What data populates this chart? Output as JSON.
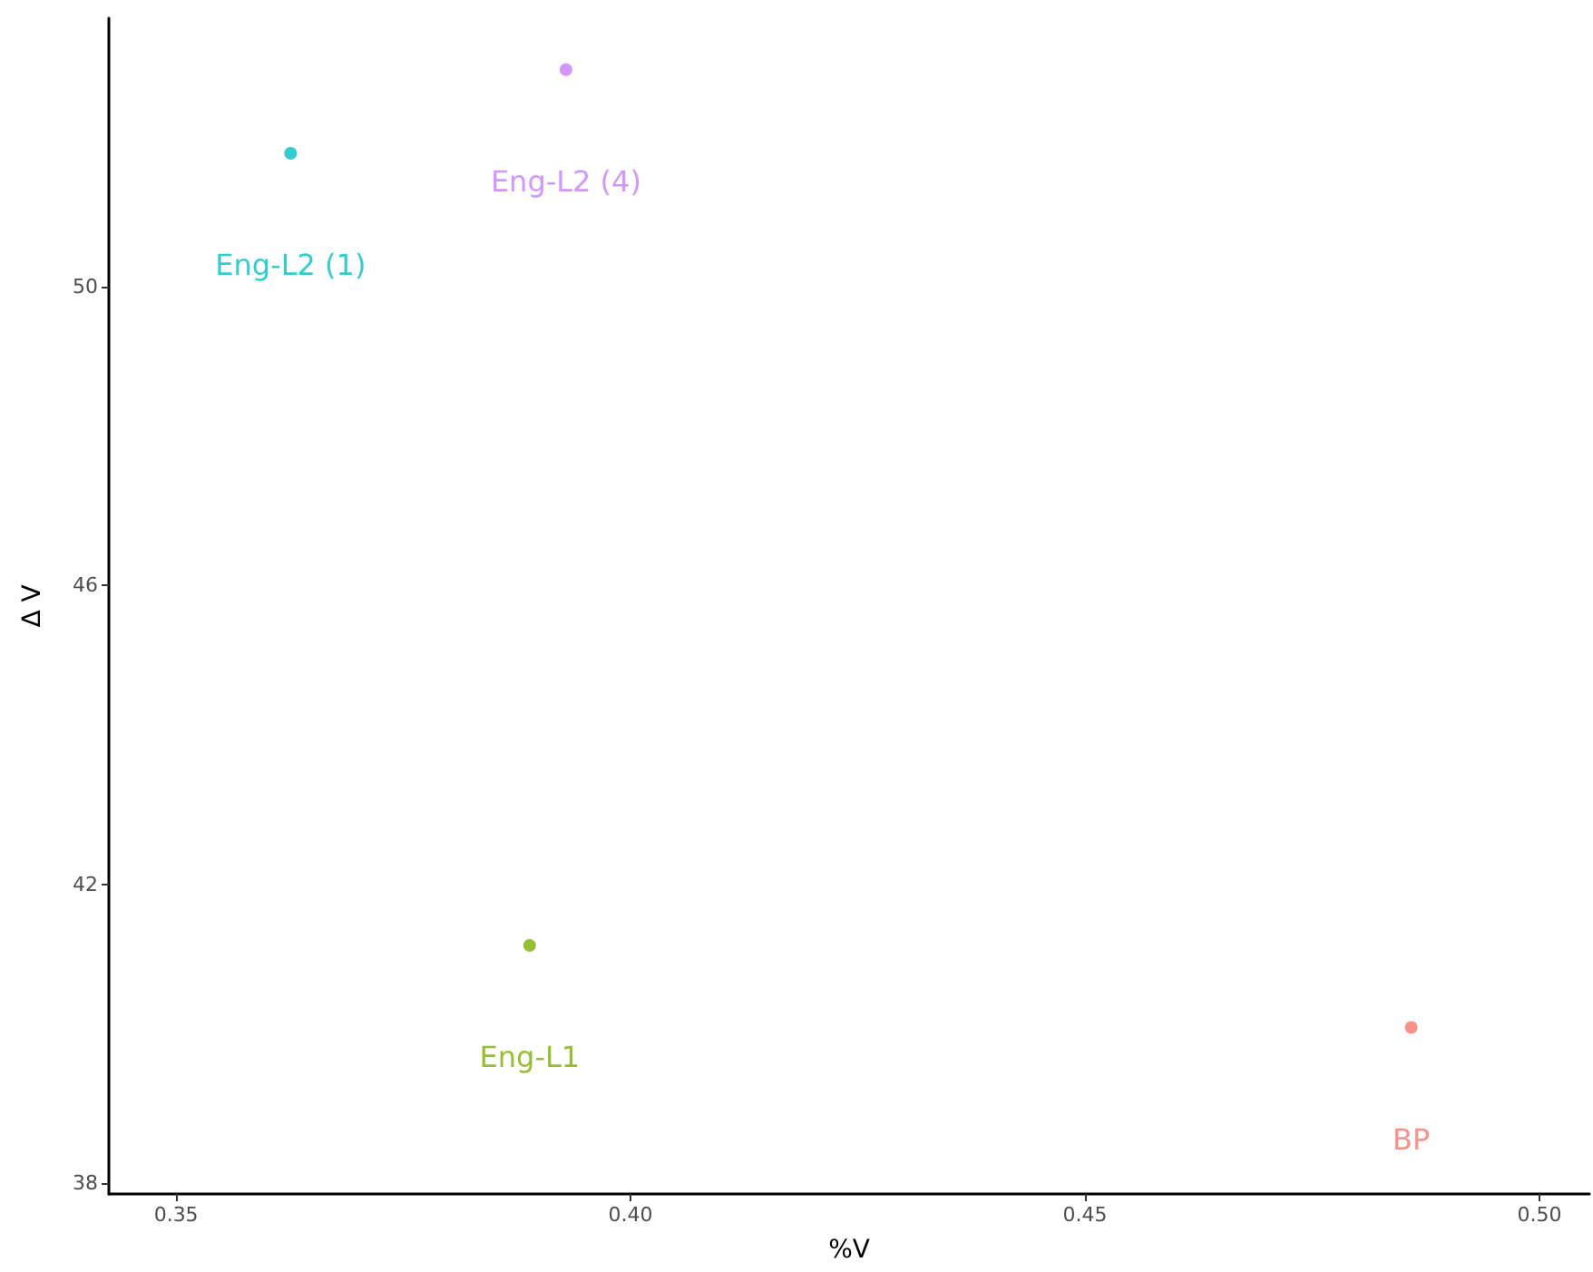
{
  "chart_data": {
    "type": "scatter",
    "xlabel": "%V",
    "ylabel": "Δ V",
    "marker": "circle",
    "grid": false,
    "legend": false,
    "xlim": [
      0.3426,
      0.5055
    ],
    "xticks": [
      {
        "value": 0.35,
        "label": "0.35"
      },
      {
        "value": 0.4,
        "label": "0.40"
      },
      {
        "value": 0.45,
        "label": "0.45"
      },
      {
        "value": 0.5,
        "label": "0.50"
      }
    ],
    "ylim": [
      37.85,
      53.6
    ],
    "yticks": [
      38,
      42,
      46,
      50
    ],
    "series": [
      {
        "name": "BP",
        "color": "#f8766d",
        "x": [
          0.4859
        ],
        "values": [
          40.08
        ]
      },
      {
        "name": "Eng-L1",
        "color": "#7cae00",
        "x": [
          0.3889
        ],
        "values": [
          41.18
        ]
      },
      {
        "name": "Eng-L2 (1)",
        "color": "#00bfc4",
        "x": [
          0.3626
        ],
        "values": [
          51.79
        ]
      },
      {
        "name": "Eng-L2 (4)",
        "color": "#c77cff",
        "x": [
          0.3929
        ],
        "values": [
          52.91
        ]
      }
    ]
  }
}
